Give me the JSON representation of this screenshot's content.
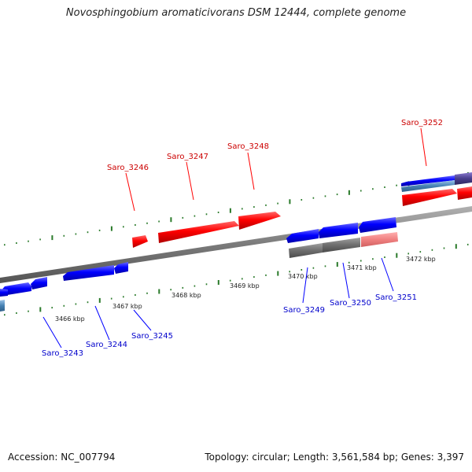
{
  "title": "Novosphingobium aromaticivorans DSM 12444, complete genome",
  "footer": {
    "accession": "Accession: NC_007794",
    "summary": "Topology: circular; Length: 3,561,584 bp; Genes: 3,397"
  },
  "colors": {
    "forward_gene": "#ff0000",
    "reverse_gene": "#0000ff",
    "forward_label": "#cc0000",
    "reverse_label": "#0000cc",
    "backbone": "#808080",
    "tick": "#2a7a2a"
  },
  "kbp_labels": [
    "3466 kbp",
    "3467 kbp",
    "3468 kbp",
    "3469 kbp",
    "3470 kbp",
    "3471 kbp",
    "3472 kbp"
  ],
  "gene_labels": {
    "forward": [
      "Saro_3246",
      "Saro_3247",
      "Saro_3248",
      "Saro_3252"
    ],
    "reverse": [
      "Saro_3243",
      "Saro_3244",
      "Saro_3245",
      "Saro_3249",
      "Saro_3250",
      "Saro_3251"
    ]
  }
}
